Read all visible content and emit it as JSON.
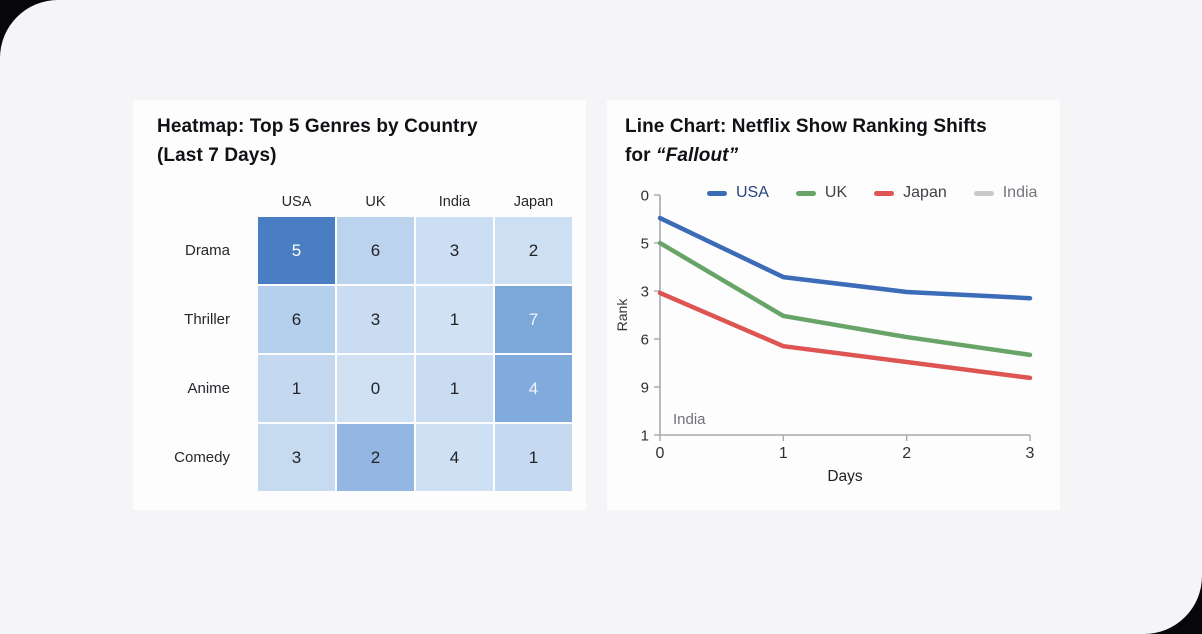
{
  "page": {
    "outer_background": "#070709",
    "sheet_background": "#f5f5f8",
    "card_background": "#fdfdfe"
  },
  "chart_data": [
    {
      "type": "heatmap",
      "title_line1": "Heatmap: Top 5 Genres by Country",
      "title_line2": "(Last 7 Days)",
      "columns": [
        "USA",
        "UK",
        "India",
        "Japan"
      ],
      "rows": [
        "Drama",
        "Thriller",
        "Anime",
        "Comedy"
      ],
      "values": [
        [
          5,
          6,
          3,
          2
        ],
        [
          6,
          3,
          1,
          7
        ],
        [
          1,
          0,
          1,
          4
        ],
        [
          3,
          2,
          4,
          1
        ]
      ],
      "cell_colors": [
        [
          "#4a7ec3",
          "#bcd3ee",
          "#cbdef3",
          "#cde0f3"
        ],
        [
          "#b5d0ec",
          "#c9dcf1",
          "#d1e2f4",
          "#7ba7d9"
        ],
        [
          "#c4d9f0",
          "#d0e1f3",
          "#c9dcf1",
          "#81abdc"
        ],
        [
          "#c7dbf0",
          "#93b7e2",
          "#cee0f3",
          "#c5daf0"
        ]
      ],
      "cell_text_colors": [
        [
          "#ffffff",
          "#222428",
          "#222428",
          "#222428"
        ],
        [
          "#222428",
          "#222428",
          "#222428",
          "#f2f6fb"
        ],
        [
          "#222428",
          "#222428",
          "#222428",
          "#f2f6fb"
        ],
        [
          "#222428",
          "#222428",
          "#222428",
          "#222428"
        ]
      ]
    },
    {
      "type": "line",
      "title_line1": "Line Chart: Netflix Show Ranking Shifts",
      "title_line2_prefix": "for ",
      "title_line2_italic": "“Fallout”",
      "xlabel": "Days",
      "ylabel": "Rank",
      "x_tick_labels": [
        "0",
        "1",
        "2",
        "3"
      ],
      "y_tick_labels": [
        "0",
        "5",
        "3",
        "6",
        "9",
        "1"
      ],
      "annotation": "India",
      "x": [
        0,
        1,
        2,
        3
      ],
      "series": [
        {
          "name": "USA",
          "color": "#3c6cb7",
          "label_color": "#27447e",
          "y_tick_units": [
            0.48,
            1.71,
            2.02,
            2.15
          ]
        },
        {
          "name": "UK",
          "color": "#68a468",
          "label_color": "#3f4347",
          "y_tick_units": [
            1.0,
            2.52,
            2.96,
            3.33
          ]
        },
        {
          "name": "Japan",
          "color": "#dd5452",
          "label_color": "#3f4347",
          "y_tick_units": [
            2.04,
            3.15,
            3.48,
            3.81
          ]
        },
        {
          "name": "India",
          "color": "#c8cacb",
          "label_color": "#73777c",
          "y_tick_units": null
        }
      ],
      "layout": {
        "legend_position": "top",
        "grid": false,
        "axis_color": "#a6a9ad",
        "tick_label_color": "#2e3134"
      }
    }
  ]
}
